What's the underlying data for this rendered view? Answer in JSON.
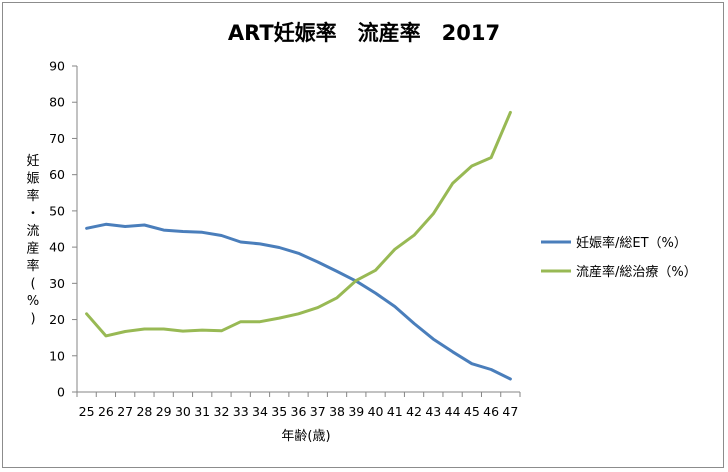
{
  "chart_data": {
    "type": "line",
    "title": "ART妊娠率　流産率　2017",
    "xlabel": "年齢(歳)",
    "ylabel": "妊娠率・流産率(%)",
    "ylabel_chars": [
      "妊",
      "娠",
      "率",
      "・",
      "流",
      "産",
      "率",
      "(",
      "%",
      ")"
    ],
    "ylim": [
      0,
      90
    ],
    "yticks": [
      0,
      10,
      20,
      30,
      40,
      50,
      60,
      70,
      80,
      90
    ],
    "x": [
      25,
      26,
      27,
      28,
      29,
      30,
      31,
      32,
      33,
      34,
      35,
      36,
      37,
      38,
      39,
      40,
      41,
      42,
      43,
      44,
      45,
      46,
      47
    ],
    "grid": false,
    "legend": "right",
    "series": [
      {
        "name": "妊娠率/総ET（%）",
        "color": "#4a7ebb",
        "values": [
          45.2,
          46.3,
          45.7,
          46.1,
          44.7,
          44.3,
          44.1,
          43.2,
          41.4,
          40.9,
          39.9,
          38.3,
          35.9,
          33.3,
          30.6,
          27.3,
          23.6,
          18.9,
          14.6,
          11.1,
          7.8,
          6.2,
          3.6
        ]
      },
      {
        "name": "流産率/総治療（%）",
        "color": "#98b954",
        "values": [
          21.6,
          15.5,
          16.7,
          17.4,
          17.4,
          16.8,
          17.1,
          16.9,
          19.4,
          19.4,
          20.4,
          21.6,
          23.3,
          26.0,
          30.8,
          33.6,
          39.4,
          43.3,
          49.2,
          57.6,
          62.4,
          64.7,
          77.2
        ]
      }
    ]
  }
}
